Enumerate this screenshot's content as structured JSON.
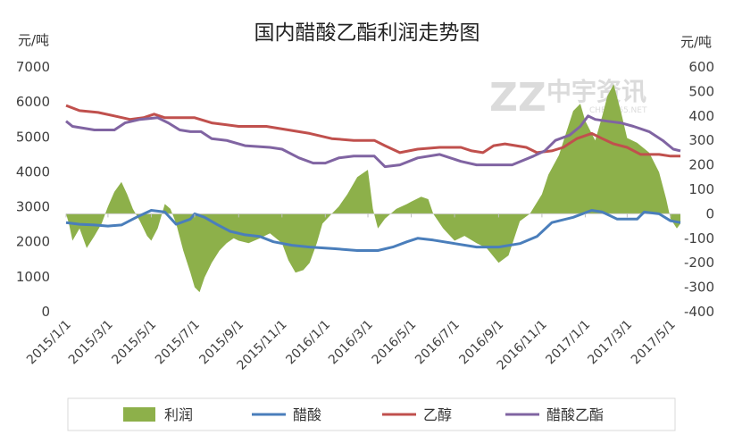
{
  "chart_data": {
    "type": "line",
    "title": "国内醋酸乙酯利润走势图",
    "ylabel_left": "元/吨",
    "ylabel_right": "元/吨",
    "ylim_left": [
      0,
      7000
    ],
    "ylim_right": [
      -400,
      600
    ],
    "yticks_left": [
      "0",
      "1000",
      "2000",
      "3000",
      "4000",
      "5000",
      "6000",
      "7000"
    ],
    "yticks_right": [
      "-400",
      "-300",
      "-200",
      "-100",
      "0",
      "100",
      "200",
      "300",
      "400",
      "500",
      "600"
    ],
    "x_ticks": [
      "2015/1/1",
      "2015/3/1",
      "2015/5/1",
      "2015/7/1",
      "2015/9/1",
      "2015/11/1",
      "2016/1/1",
      "2016/3/1",
      "2016/5/1",
      "2016/7/1",
      "2016/9/1",
      "2016/11/1",
      "2017/1/1",
      "2017/3/1",
      "2017/5/1"
    ],
    "x_range": [
      "2015/1/1",
      "2017/5/15"
    ],
    "grid": false,
    "legend_position": "bottom",
    "series": [
      {
        "name": "利润",
        "type": "area",
        "axis": "right",
        "color": "#8db04a",
        "points": [
          [
            "2015/1/1",
            0
          ],
          [
            "2015/1/5",
            -40
          ],
          [
            "2015/1/10",
            -110
          ],
          [
            "2015/1/20",
            -60
          ],
          [
            "2015/1/30",
            -140
          ],
          [
            "2015/2/10",
            -90
          ],
          [
            "2015/2/20",
            -40
          ],
          [
            "2015/3/1",
            30
          ],
          [
            "2015/3/10",
            90
          ],
          [
            "2015/3/20",
            130
          ],
          [
            "2015/3/28",
            80
          ],
          [
            "2015/4/5",
            20
          ],
          [
            "2015/4/15",
            -30
          ],
          [
            "2015/4/25",
            -90
          ],
          [
            "2015/5/1",
            -110
          ],
          [
            "2015/5/10",
            -60
          ],
          [
            "2015/5/20",
            40
          ],
          [
            "2015/5/28",
            20
          ],
          [
            "2015/6/5",
            -40
          ],
          [
            "2015/6/15",
            -150
          ],
          [
            "2015/6/25",
            -240
          ],
          [
            "2015/7/1",
            -300
          ],
          [
            "2015/7/8",
            -320
          ],
          [
            "2015/7/15",
            -260
          ],
          [
            "2015/7/25",
            -200
          ],
          [
            "2015/8/5",
            -150
          ],
          [
            "2015/8/15",
            -120
          ],
          [
            "2015/8/25",
            -100
          ],
          [
            "2015/9/1",
            -110
          ],
          [
            "2015/9/15",
            -120
          ],
          [
            "2015/10/1",
            -100
          ],
          [
            "2015/10/15",
            -80
          ],
          [
            "2015/11/1",
            -120
          ],
          [
            "2015/11/10",
            -190
          ],
          [
            "2015/11/20",
            -240
          ],
          [
            "2015/12/1",
            -230
          ],
          [
            "2015/12/10",
            -200
          ],
          [
            "2015/12/20",
            -120
          ],
          [
            "2015/12/28",
            -40
          ],
          [
            "2016/1/10",
            0
          ],
          [
            "2016/1/20",
            30
          ],
          [
            "2016/2/1",
            80
          ],
          [
            "2016/2/15",
            150
          ],
          [
            "2016/2/25",
            170
          ],
          [
            "2016/3/1",
            180
          ],
          [
            "2016/3/8",
            20
          ],
          [
            "2016/3/15",
            -60
          ],
          [
            "2016/3/25",
            -20
          ],
          [
            "2016/4/10",
            20
          ],
          [
            "2016/4/25",
            40
          ],
          [
            "2016/5/1",
            50
          ],
          [
            "2016/5/15",
            70
          ],
          [
            "2016/5/25",
            60
          ],
          [
            "2016/6/1",
            0
          ],
          [
            "2016/6/15",
            -60
          ],
          [
            "2016/7/1",
            -110
          ],
          [
            "2016/7/15",
            -90
          ],
          [
            "2016/8/1",
            -120
          ],
          [
            "2016/8/15",
            -140
          ],
          [
            "2016/9/1",
            -200
          ],
          [
            "2016/9/15",
            -170
          ],
          [
            "2016/10/1",
            -30
          ],
          [
            "2016/10/15",
            0
          ],
          [
            "2016/11/1",
            80
          ],
          [
            "2016/11/10",
            160
          ],
          [
            "2016/11/25",
            240
          ],
          [
            "2016/12/5",
            330
          ],
          [
            "2016/12/15",
            420
          ],
          [
            "2016/12/25",
            450
          ],
          [
            "2017/1/1",
            380
          ],
          [
            "2017/1/15",
            300
          ],
          [
            "2017/1/25",
            400
          ],
          [
            "2017/2/1",
            480
          ],
          [
            "2017/2/10",
            530
          ],
          [
            "2017/2/20",
            420
          ],
          [
            "2017/3/1",
            310
          ],
          [
            "2017/3/15",
            290
          ],
          [
            "2017/4/1",
            250
          ],
          [
            "2017/4/15",
            170
          ],
          [
            "2017/4/25",
            60
          ],
          [
            "2017/5/1",
            -20
          ],
          [
            "2017/5/10",
            -60
          ],
          [
            "2017/5/15",
            -40
          ]
        ]
      },
      {
        "name": "醋酸",
        "type": "line",
        "axis": "left",
        "color": "#4a7ebb",
        "points": [
          [
            "2015/1/1",
            2550
          ],
          [
            "2015/1/20",
            2500
          ],
          [
            "2015/2/10",
            2480
          ],
          [
            "2015/3/1",
            2450
          ],
          [
            "2015/3/20",
            2480
          ],
          [
            "2015/4/10",
            2700
          ],
          [
            "2015/5/1",
            2900
          ],
          [
            "2015/5/20",
            2850
          ],
          [
            "2015/6/5",
            2500
          ],
          [
            "2015/6/25",
            2650
          ],
          [
            "2015/7/1",
            2800
          ],
          [
            "2015/7/15",
            2700
          ],
          [
            "2015/8/1",
            2500
          ],
          [
            "2015/8/20",
            2300
          ],
          [
            "2015/9/10",
            2200
          ],
          [
            "2015/10/1",
            2150
          ],
          [
            "2015/10/20",
            2000
          ],
          [
            "2015/11/15",
            1900
          ],
          [
            "2015/12/10",
            1850
          ],
          [
            "2016/1/15",
            1800
          ],
          [
            "2016/2/15",
            1750
          ],
          [
            "2016/3/15",
            1750
          ],
          [
            "2016/4/5",
            1850
          ],
          [
            "2016/4/25",
            2000
          ],
          [
            "2016/5/10",
            2100
          ],
          [
            "2016/6/1",
            2050
          ],
          [
            "2016/7/1",
            1950
          ],
          [
            "2016/8/1",
            1850
          ],
          [
            "2016/9/1",
            1850
          ],
          [
            "2016/10/1",
            1950
          ],
          [
            "2016/10/25",
            2150
          ],
          [
            "2016/11/15",
            2550
          ],
          [
            "2016/12/15",
            2700
          ],
          [
            "2017/1/10",
            2900
          ],
          [
            "2017/1/25",
            2850
          ],
          [
            "2017/2/15",
            2650
          ],
          [
            "2017/3/15",
            2650
          ],
          [
            "2017/3/25",
            2850
          ],
          [
            "2017/4/15",
            2800
          ],
          [
            "2017/5/1",
            2600
          ],
          [
            "2017/5/15",
            2550
          ]
        ]
      },
      {
        "name": "乙醇",
        "type": "line",
        "axis": "left",
        "color": "#c0504d",
        "points": [
          [
            "2015/1/1",
            5900
          ],
          [
            "2015/1/20",
            5750
          ],
          [
            "2015/2/15",
            5700
          ],
          [
            "2015/3/10",
            5600
          ],
          [
            "2015/4/1",
            5500
          ],
          [
            "2015/4/20",
            5550
          ],
          [
            "2015/5/5",
            5650
          ],
          [
            "2015/5/20",
            5550
          ],
          [
            "2015/7/1",
            5550
          ],
          [
            "2015/7/25",
            5400
          ],
          [
            "2015/9/1",
            5300
          ],
          [
            "2015/10/10",
            5300
          ],
          [
            "2015/11/10",
            5200
          ],
          [
            "2015/12/10",
            5100
          ],
          [
            "2016/1/10",
            4950
          ],
          [
            "2016/2/10",
            4900
          ],
          [
            "2016/3/10",
            4900
          ],
          [
            "2016/3/25",
            4750
          ],
          [
            "2016/4/15",
            4550
          ],
          [
            "2016/5/10",
            4650
          ],
          [
            "2016/6/10",
            4700
          ],
          [
            "2016/7/10",
            4700
          ],
          [
            "2016/7/25",
            4600
          ],
          [
            "2016/8/10",
            4550
          ],
          [
            "2016/8/25",
            4750
          ],
          [
            "2016/9/10",
            4800
          ],
          [
            "2016/10/10",
            4700
          ],
          [
            "2016/10/25",
            4550
          ],
          [
            "2016/11/15",
            4600
          ],
          [
            "2016/12/1",
            4700
          ],
          [
            "2016/12/20",
            4950
          ],
          [
            "2017/1/10",
            5100
          ],
          [
            "2017/1/25",
            4950
          ],
          [
            "2017/2/10",
            4800
          ],
          [
            "2017/3/1",
            4700
          ],
          [
            "2017/3/20",
            4500
          ],
          [
            "2017/4/15",
            4500
          ],
          [
            "2017/5/1",
            4450
          ],
          [
            "2017/5/15",
            4450
          ]
        ]
      },
      {
        "name": "醋酸乙酯",
        "type": "line",
        "axis": "left",
        "color": "#8064a2",
        "points": [
          [
            "2015/1/1",
            5450
          ],
          [
            "2015/1/10",
            5300
          ],
          [
            "2015/2/10",
            5200
          ],
          [
            "2015/3/10",
            5200
          ],
          [
            "2015/3/25",
            5400
          ],
          [
            "2015/4/15",
            5500
          ],
          [
            "2015/5/10",
            5550
          ],
          [
            "2015/5/25",
            5400
          ],
          [
            "2015/6/10",
            5200
          ],
          [
            "2015/6/25",
            5150
          ],
          [
            "2015/7/10",
            5150
          ],
          [
            "2015/7/25",
            4950
          ],
          [
            "2015/8/15",
            4900
          ],
          [
            "2015/9/10",
            4750
          ],
          [
            "2015/10/15",
            4700
          ],
          [
            "2015/11/1",
            4650
          ],
          [
            "2015/11/25",
            4400
          ],
          [
            "2015/12/15",
            4250
          ],
          [
            "2016/1/1",
            4250
          ],
          [
            "2016/1/20",
            4400
          ],
          [
            "2016/2/10",
            4450
          ],
          [
            "2016/3/10",
            4450
          ],
          [
            "2016/3/25",
            4150
          ],
          [
            "2016/4/15",
            4200
          ],
          [
            "2016/5/10",
            4400
          ],
          [
            "2016/6/10",
            4500
          ],
          [
            "2016/7/10",
            4300
          ],
          [
            "2016/8/1",
            4200
          ],
          [
            "2016/8/20",
            4200
          ],
          [
            "2016/9/20",
            4200
          ],
          [
            "2016/10/20",
            4450
          ],
          [
            "2016/11/5",
            4600
          ],
          [
            "2016/11/20",
            4900
          ],
          [
            "2016/12/10",
            5050
          ],
          [
            "2016/12/25",
            5300
          ],
          [
            "2017/1/5",
            5600
          ],
          [
            "2017/1/15",
            5500
          ],
          [
            "2017/2/1",
            5450
          ],
          [
            "2017/2/20",
            5400
          ],
          [
            "2017/3/10",
            5300
          ],
          [
            "2017/4/1",
            5150
          ],
          [
            "2017/4/20",
            4900
          ],
          [
            "2017/5/5",
            4650
          ],
          [
            "2017/5/15",
            4600
          ]
        ]
      }
    ]
  },
  "watermark": {
    "logo_text": "ZZ",
    "brand_text": "中宇资讯",
    "url_text": "CHEM365.NET"
  }
}
